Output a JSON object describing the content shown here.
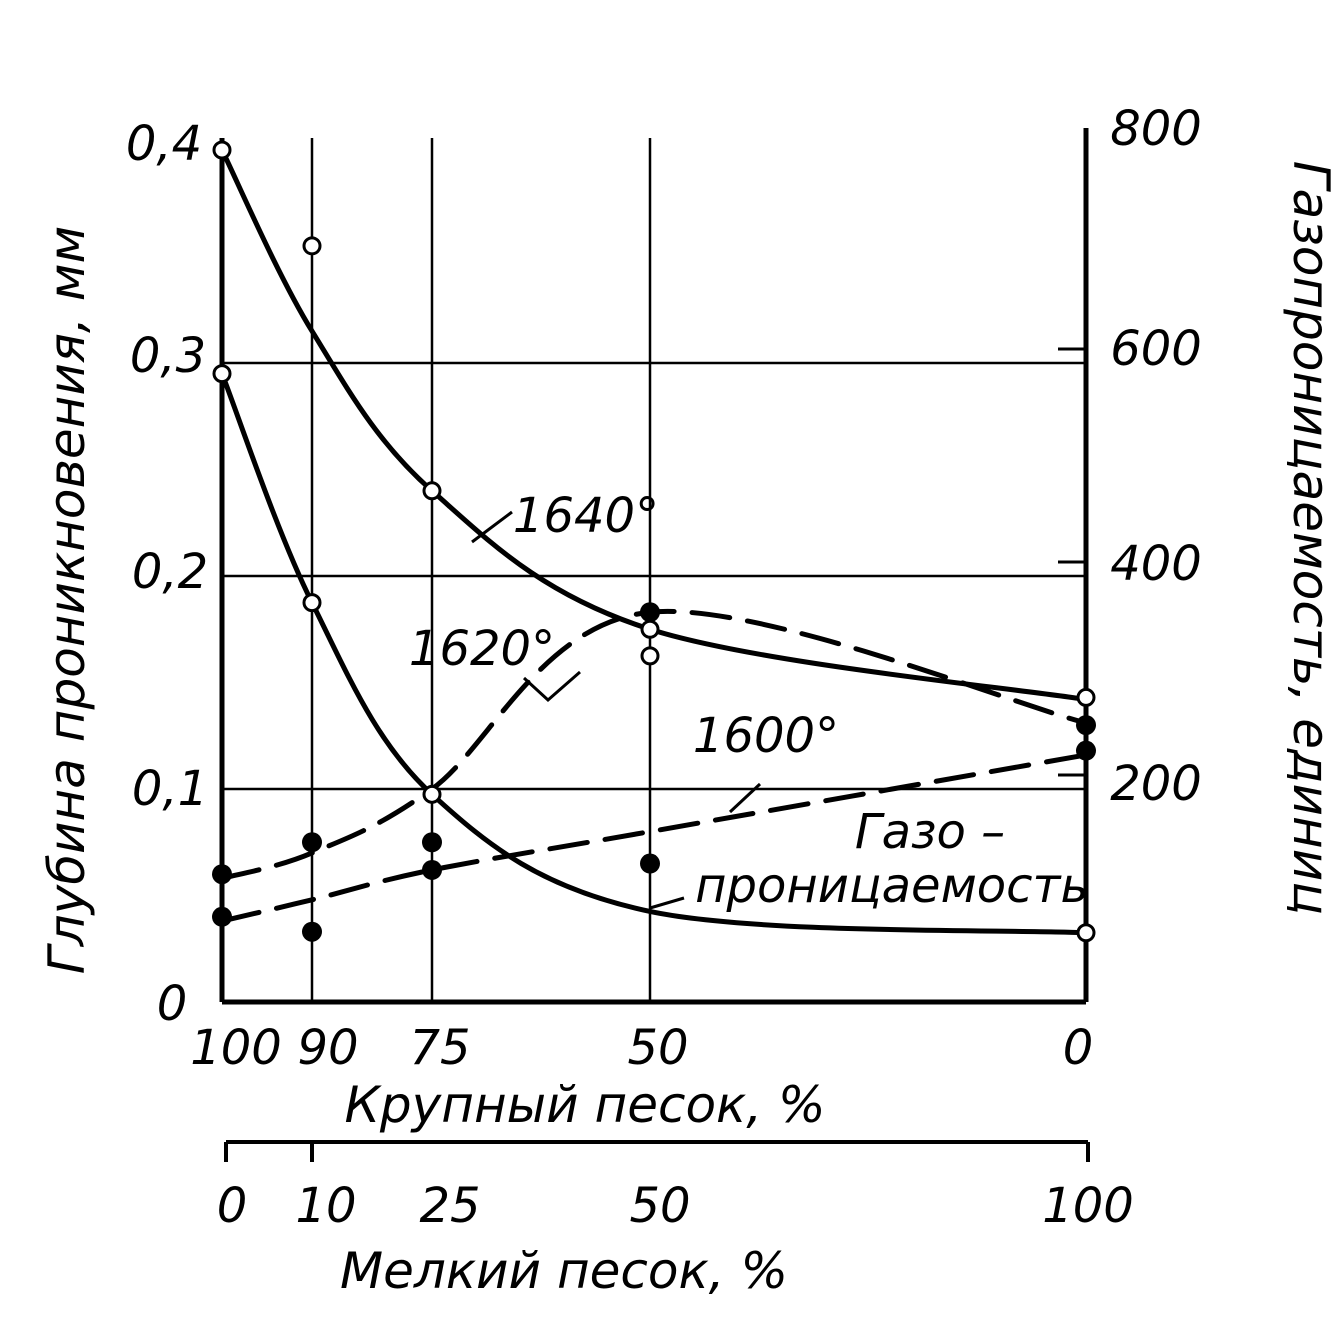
{
  "chart_data": {
    "type": "line",
    "x_primary": {
      "label": "Крупный песок, %",
      "ticks": [
        "100",
        "90",
        "75",
        "50",
        "0"
      ]
    },
    "x_secondary": {
      "label": "Мелкий песок, %",
      "ticks": [
        "0",
        "10",
        "25",
        "50",
        "100"
      ]
    },
    "fine_sand_pct": [
      0,
      10,
      25,
      50,
      100
    ],
    "y_left": {
      "label": "Глубина проникновения, мм",
      "ticks": [
        "0",
        "0,1",
        "0,2",
        "0,3",
        "0,4"
      ],
      "range": [
        0,
        0.4
      ]
    },
    "y_right": {
      "label": "Газопроницаемость, единиц",
      "ticks": [
        "200",
        "400",
        "600",
        "800"
      ],
      "range": [
        0,
        800
      ]
    },
    "series": [
      {
        "name": "1640°",
        "label": "1640°",
        "axis": "left",
        "style": "solid",
        "marker": "open",
        "x": [
          0,
          10,
          25,
          50,
          100
        ],
        "values": [
          0.4,
          0.355,
          0.24,
          0.175,
          0.143
        ],
        "curve": [
          0.4,
          0.315,
          0.24,
          0.175,
          0.142
        ]
      },
      {
        "name": "Газопроницаемость",
        "label": "Газо –\nпроницаемость",
        "axis": "right",
        "style": "solid",
        "marker": "open",
        "x": [
          0,
          10,
          25,
          50,
          100
        ],
        "values": [
          590,
          375,
          195,
          325,
          65
        ],
        "curve": [
          590,
          375,
          195,
          85,
          65
        ]
      },
      {
        "name": "1620°",
        "label": "1620°",
        "axis": "left",
        "style": "dashed",
        "marker": "filled",
        "x": [
          0,
          10,
          25,
          50,
          100
        ],
        "values": [
          0.06,
          0.075,
          0.075,
          0.183,
          0.13
        ],
        "curve": [
          0.058,
          0.07,
          0.1,
          0.183,
          0.131
        ]
      },
      {
        "name": "1600°",
        "label": "1600°",
        "axis": "left",
        "style": "dashed",
        "marker": "filled",
        "x": [
          0,
          10,
          25,
          50,
          100
        ],
        "values": [
          0.04,
          0.033,
          0.062,
          0.065,
          0.118
        ],
        "curve": [
          0.038,
          0.048,
          0.062,
          0.08,
          0.116
        ]
      }
    ]
  }
}
